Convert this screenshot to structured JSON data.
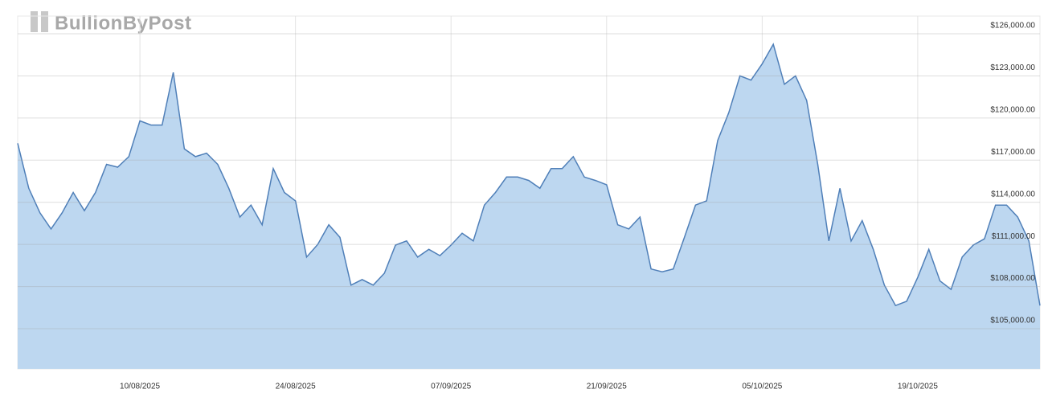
{
  "chart_data": {
    "type": "area",
    "watermark": "BullionByPost",
    "x": [
      "30/07/2025",
      "31/07/2025",
      "01/08/2025",
      "02/08/2025",
      "03/08/2025",
      "04/08/2025",
      "05/08/2025",
      "06/08/2025",
      "07/08/2025",
      "08/08/2025",
      "09/08/2025",
      "10/08/2025",
      "11/08/2025",
      "12/08/2025",
      "13/08/2025",
      "14/08/2025",
      "15/08/2025",
      "16/08/2025",
      "17/08/2025",
      "18/08/2025",
      "19/08/2025",
      "20/08/2025",
      "21/08/2025",
      "22/08/2025",
      "23/08/2025",
      "24/08/2025",
      "25/08/2025",
      "26/08/2025",
      "27/08/2025",
      "28/08/2025",
      "29/08/2025",
      "30/08/2025",
      "31/08/2025",
      "01/09/2025",
      "02/09/2025",
      "03/09/2025",
      "04/09/2025",
      "05/09/2025",
      "06/09/2025",
      "07/09/2025",
      "08/09/2025",
      "09/09/2025",
      "10/09/2025",
      "11/09/2025",
      "12/09/2025",
      "13/09/2025",
      "14/09/2025",
      "15/09/2025",
      "16/09/2025",
      "17/09/2025",
      "18/09/2025",
      "19/09/2025",
      "20/09/2025",
      "21/09/2025",
      "22/09/2025",
      "23/09/2025",
      "24/09/2025",
      "25/09/2025",
      "26/09/2025",
      "27/09/2025",
      "28/09/2025",
      "29/09/2025",
      "30/09/2025",
      "01/10/2025",
      "02/10/2025",
      "03/10/2025",
      "04/10/2025",
      "05/10/2025",
      "06/10/2025",
      "07/10/2025",
      "08/10/2025",
      "09/10/2025",
      "10/10/2025",
      "11/10/2025",
      "12/10/2025",
      "13/10/2025",
      "14/10/2025",
      "15/10/2025",
      "16/10/2025",
      "17/10/2025",
      "18/10/2025",
      "19/10/2025",
      "20/10/2025",
      "21/10/2025",
      "22/10/2025",
      "23/10/2025",
      "24/10/2025",
      "25/10/2025",
      "26/10/2025",
      "27/10/2025",
      "28/10/2025",
      "29/10/2025",
      "30/10/2025"
    ],
    "series": [
      {
        "color": "#4f7fb8",
        "fill": "#bdd7f0",
        "values": [
          118200,
          115000,
          113250,
          112100,
          113250,
          114700,
          113400,
          114700,
          116700,
          116500,
          117250,
          119800,
          119500,
          119500,
          123250,
          117800,
          117250,
          117500,
          116700,
          115000,
          112950,
          113800,
          112400,
          116400,
          114700,
          114100,
          110100,
          111000,
          112400,
          111500,
          108100,
          108500,
          108100,
          108950,
          110950,
          111250,
          110100,
          110650,
          110200,
          110950,
          111800,
          111250,
          113800,
          114700,
          115800,
          115800,
          115550,
          115000,
          116400,
          116400,
          117250,
          115800,
          115550,
          115250,
          112400,
          112100,
          112950,
          109250,
          109050,
          109250,
          111500,
          113800,
          114100,
          118400,
          120400,
          123000,
          122700,
          123850,
          125250,
          122400,
          123000,
          121250,
          116700,
          111250,
          115000,
          111250,
          112700,
          110650,
          108100,
          106650,
          106950,
          108650,
          110650,
          108400,
          107800,
          110100,
          110950,
          111400,
          113800,
          113800,
          112950,
          111250,
          106650
        ]
      }
    ],
    "xlim": [
      "30/07/2025",
      "30/10/2025"
    ],
    "xticks": [
      "10/08/2025",
      "24/08/2025",
      "07/09/2025",
      "21/09/2025",
      "05/10/2025",
      "19/10/2025"
    ],
    "ylim": [
      102140,
      127260
    ],
    "yticks": [
      {
        "value": 105000,
        "label": "$105,000.00"
      },
      {
        "value": 108000,
        "label": "$108,000.00"
      },
      {
        "value": 111000,
        "label": "$111,000.00"
      },
      {
        "value": 114000,
        "label": "$114,000.00"
      },
      {
        "value": 117000,
        "label": "$117,000.00"
      },
      {
        "value": 120000,
        "label": "$120,000.00"
      },
      {
        "value": 123000,
        "label": "$123,000.00"
      },
      {
        "value": 126000,
        "label": "$126,000.00"
      }
    ],
    "grid": true
  }
}
